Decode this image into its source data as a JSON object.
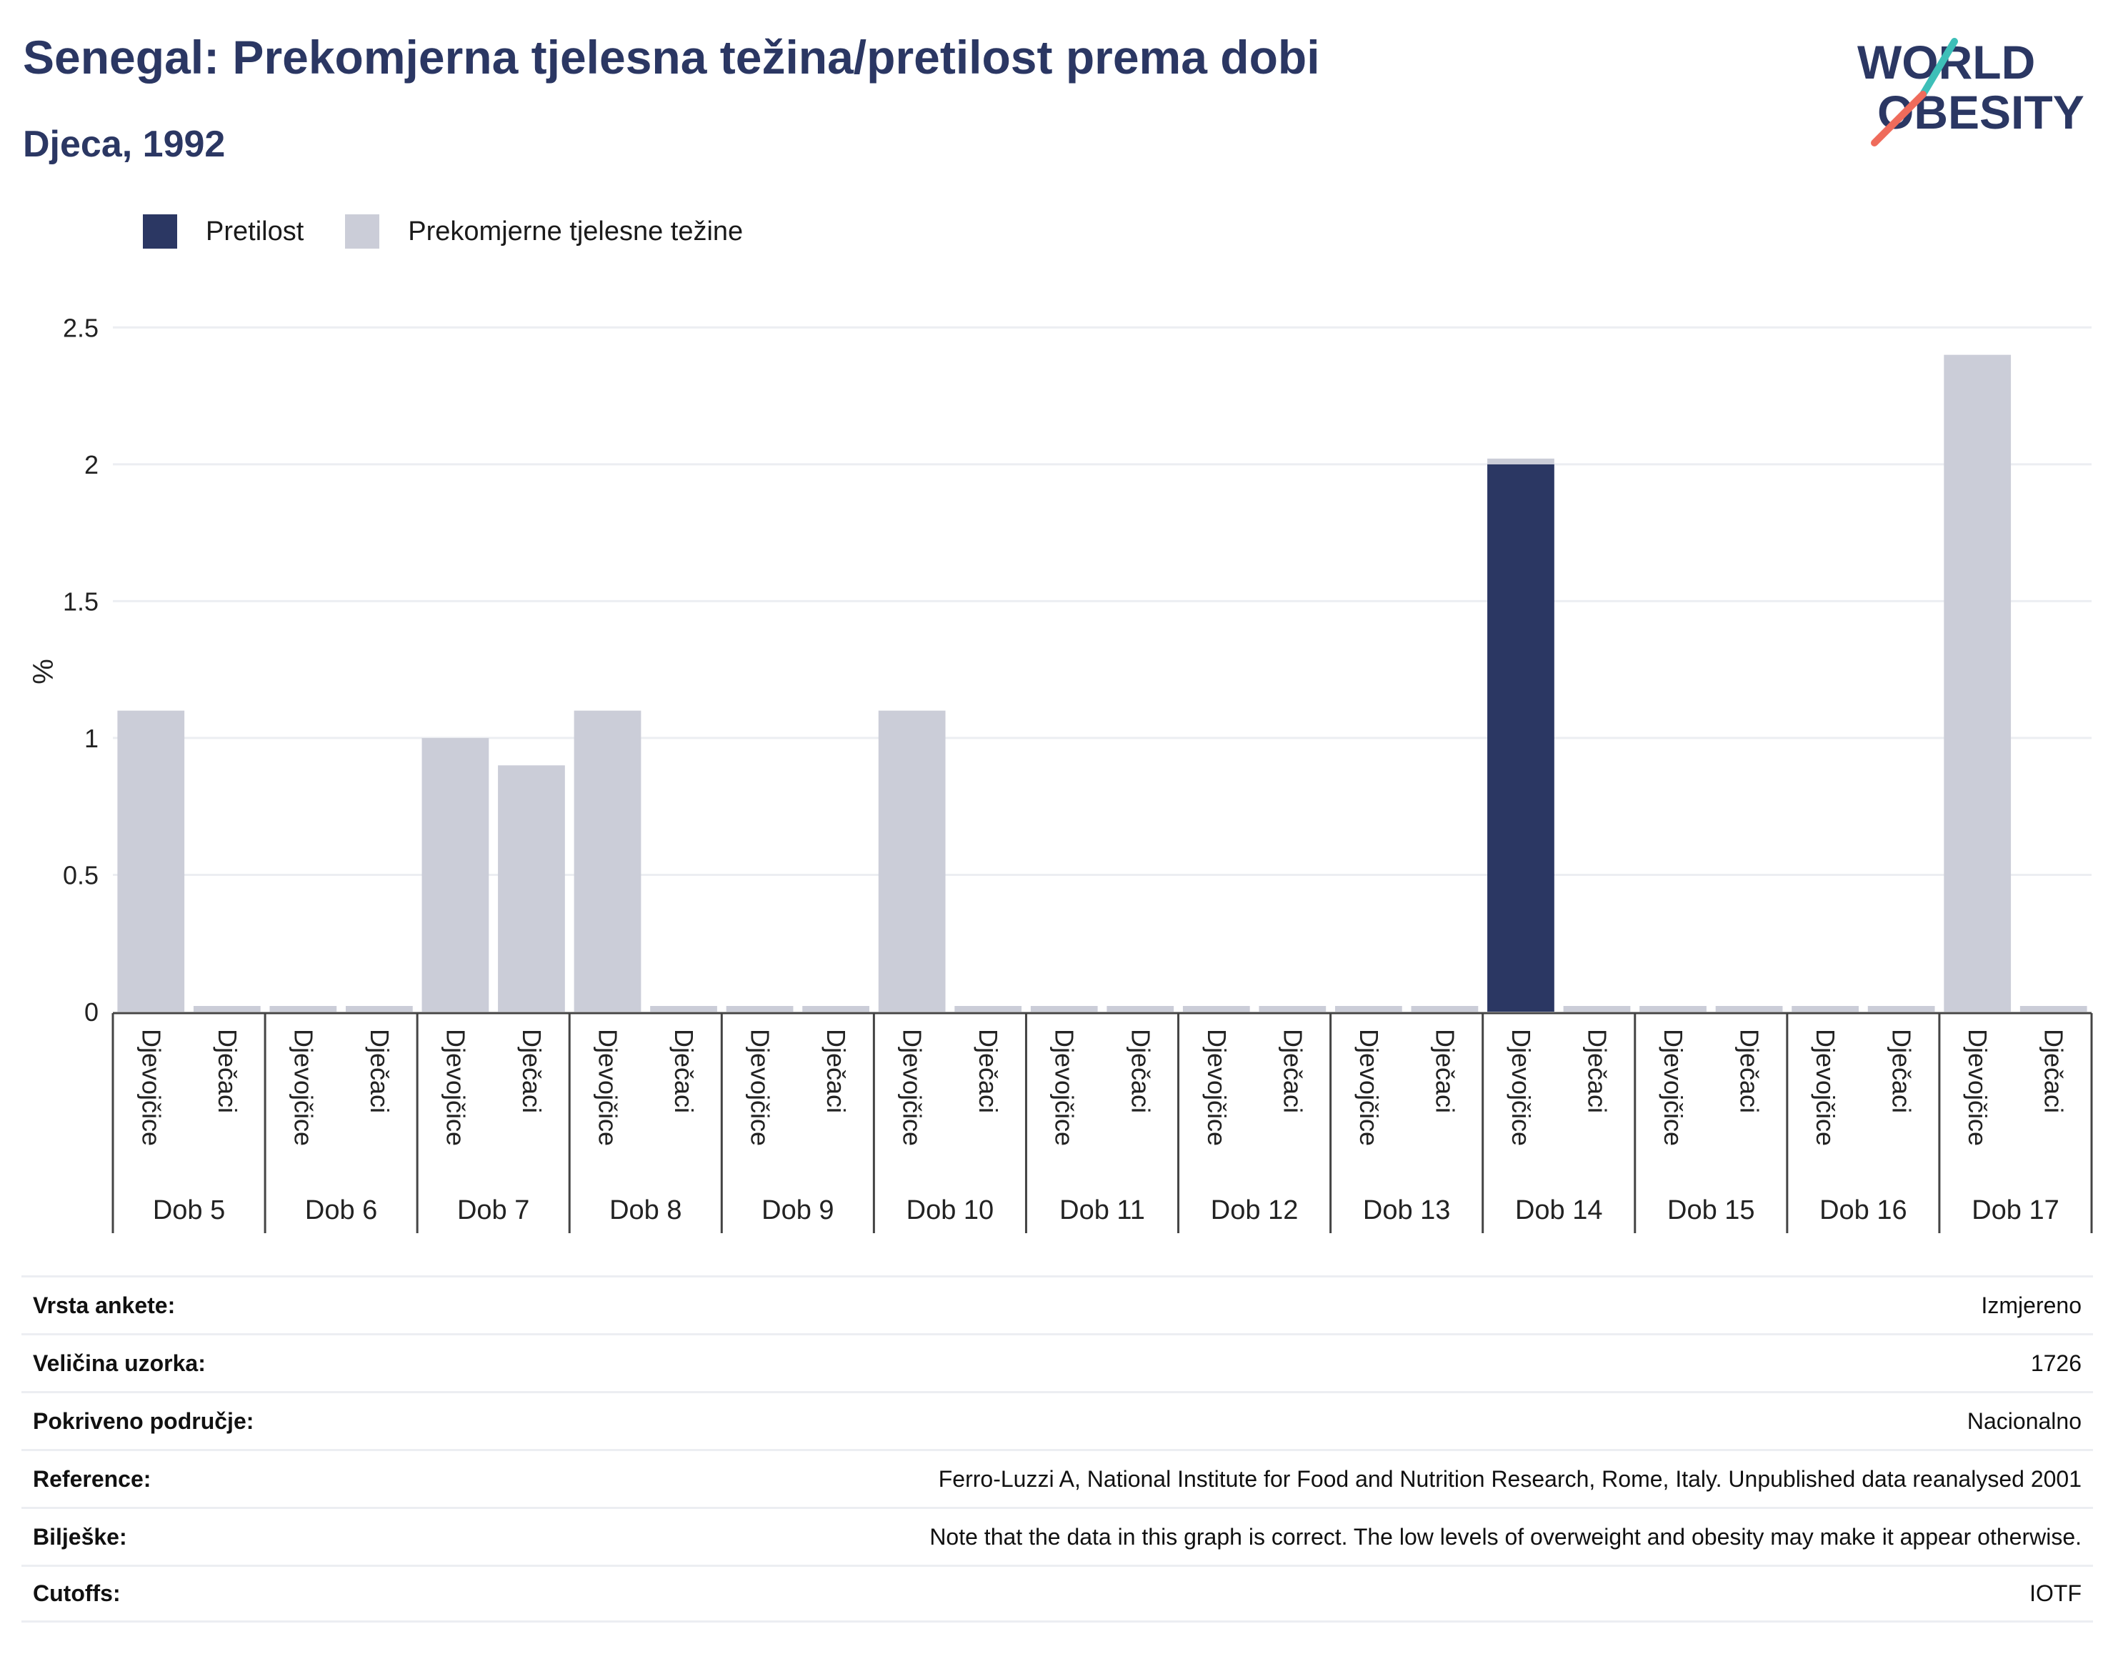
{
  "header": {
    "title": "Senegal: Prekomjerna tjelesna težina/pretilost prema dobi",
    "subtitle": "Djeca, 1992"
  },
  "logo": {
    "line1": "WORLD",
    "line2": "OBESITY",
    "accent_teal": "#3ebfb8",
    "accent_coral": "#ef6b5b",
    "text_color": "#2b3763"
  },
  "colors": {
    "obesity": "#2b3763",
    "overweight": "#cbcdd8",
    "grid": "#eceef2",
    "axis": "#444444"
  },
  "legend": {
    "obesity_label": "Pretilost",
    "overweight_label": "Prekomjerne tjelesne težine"
  },
  "chart_data": {
    "type": "bar",
    "stacked": true,
    "ylabel": "%",
    "ylim": [
      0,
      2.6
    ],
    "yticks": [
      0,
      0.5,
      1,
      1.5,
      2,
      2.5
    ],
    "ytick_labels": [
      "0",
      "0.5",
      "1",
      "1.5",
      "2",
      "2.5"
    ],
    "grid": true,
    "legend_position": "top-left",
    "groups": [
      "Dob 5",
      "Dob 6",
      "Dob 7",
      "Dob 8",
      "Dob 9",
      "Dob 10",
      "Dob 11",
      "Dob 12",
      "Dob 13",
      "Dob 14",
      "Dob 15",
      "Dob 16",
      "Dob 17"
    ],
    "subcategories": [
      "Djevojčice",
      "Dječaci"
    ],
    "series": [
      {
        "name": "Pretilost",
        "values": [
          [
            0,
            0
          ],
          [
            0,
            0
          ],
          [
            0,
            0
          ],
          [
            0,
            0
          ],
          [
            0,
            0
          ],
          [
            0,
            0
          ],
          [
            0,
            0
          ],
          [
            0,
            0
          ],
          [
            0,
            0
          ],
          [
            2.0,
            0
          ],
          [
            0,
            0
          ],
          [
            0,
            0
          ],
          [
            0,
            0
          ]
        ]
      },
      {
        "name": "Prekomjerne tjelesne težine",
        "values": [
          [
            1.1,
            0
          ],
          [
            0,
            0
          ],
          [
            1.0,
            0.9
          ],
          [
            1.1,
            0
          ],
          [
            0,
            0
          ],
          [
            1.1,
            0
          ],
          [
            0,
            0
          ],
          [
            0,
            0
          ],
          [
            0,
            0
          ],
          [
            0,
            0
          ],
          [
            0,
            0
          ],
          [
            0,
            0
          ],
          [
            2.4,
            0
          ]
        ]
      }
    ]
  },
  "info": [
    {
      "label": "Vrsta ankete:",
      "value": "Izmjereno"
    },
    {
      "label": "Veličina uzorka:",
      "value": "1726"
    },
    {
      "label": "Pokriveno područje:",
      "value": "Nacionalno"
    },
    {
      "label": "Reference:",
      "value": "Ferro-Luzzi A, National Institute for Food and Nutrition Research, Rome, Italy. Unpublished data reanalysed 2001"
    },
    {
      "label": "Bilješke:",
      "value": "Note that the data in this graph is correct. The low levels of overweight and obesity may make it appear otherwise."
    },
    {
      "label": "Cutoffs:",
      "value": "IOTF"
    }
  ]
}
